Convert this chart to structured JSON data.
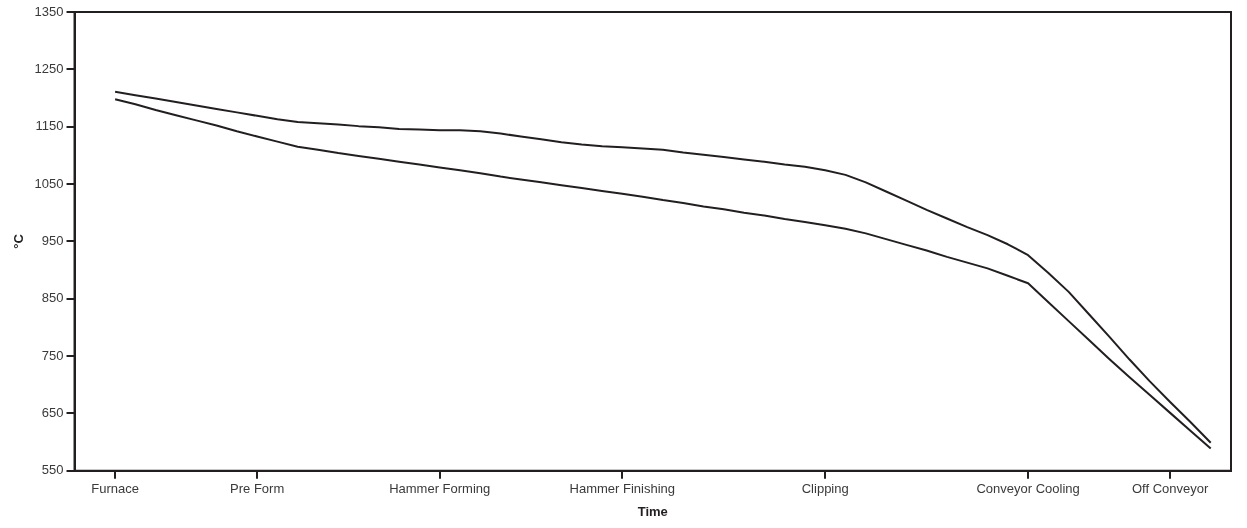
{
  "chart_data": {
    "type": "line",
    "xlabel": "Time",
    "ylabel": "°C",
    "categories": [
      null,
      null,
      "Furnace",
      null,
      null,
      null,
      null,
      null,
      null,
      "Pre Form",
      null,
      null,
      null,
      null,
      null,
      null,
      null,
      null,
      "Hammer Forming",
      null,
      null,
      null,
      null,
      null,
      null,
      null,
      null,
      "Hammer Finishing",
      null,
      null,
      null,
      null,
      null,
      null,
      null,
      null,
      null,
      "Clipping",
      null,
      null,
      null,
      null,
      null,
      null,
      null,
      null,
      null,
      "Conveyor Cooling",
      null,
      null,
      null,
      null,
      null,
      null,
      "Off Conveyor",
      null,
      null,
      null
    ],
    "ylim": [
      550,
      1350
    ],
    "yticks": [
      550,
      650,
      750,
      850,
      950,
      1050,
      1150,
      1250,
      1350
    ],
    "grid": false,
    "legend": false,
    "marker": "none",
    "line_style": "solid",
    "series": [
      {
        "color": "#231f20",
        "values": [
          null,
          null,
          1211,
          1205,
          1199,
          1193,
          1187,
          1181,
          1175,
          1169,
          1163,
          1158,
          1156,
          1154,
          1151,
          1149,
          1146,
          1145,
          1144,
          1144,
          1142,
          1138,
          1133,
          1128,
          1123,
          1119,
          1116,
          1114,
          1112,
          1110,
          1105,
          1101,
          1097,
          1093,
          1089,
          1084,
          1080,
          1074,
          1066,
          1053,
          1037,
          1021,
          1005,
          990,
          975,
          961,
          945,
          926,
          895,
          862,
          823,
          784,
          744,
          706,
          670,
          635,
          599,
          null
        ]
      },
      {
        "color": "#231f20",
        "values": [
          null,
          null,
          1198,
          1189,
          1179,
          1170,
          1161,
          1152,
          1142,
          1133,
          1124,
          1115,
          1110,
          1104,
          1099,
          1094,
          1089,
          1084,
          1079,
          1074,
          1069,
          1063,
          1058,
          1053,
          1048,
          1043,
          1038,
          1033,
          1028,
          1022,
          1017,
          1011,
          1006,
          1000,
          995,
          989,
          984,
          978,
          972,
          964,
          954,
          944,
          934,
          923,
          913,
          903,
          890,
          877,
          844,
          811,
          778,
          745,
          713,
          682,
          651,
          620,
          589,
          null
        ]
      }
    ]
  }
}
